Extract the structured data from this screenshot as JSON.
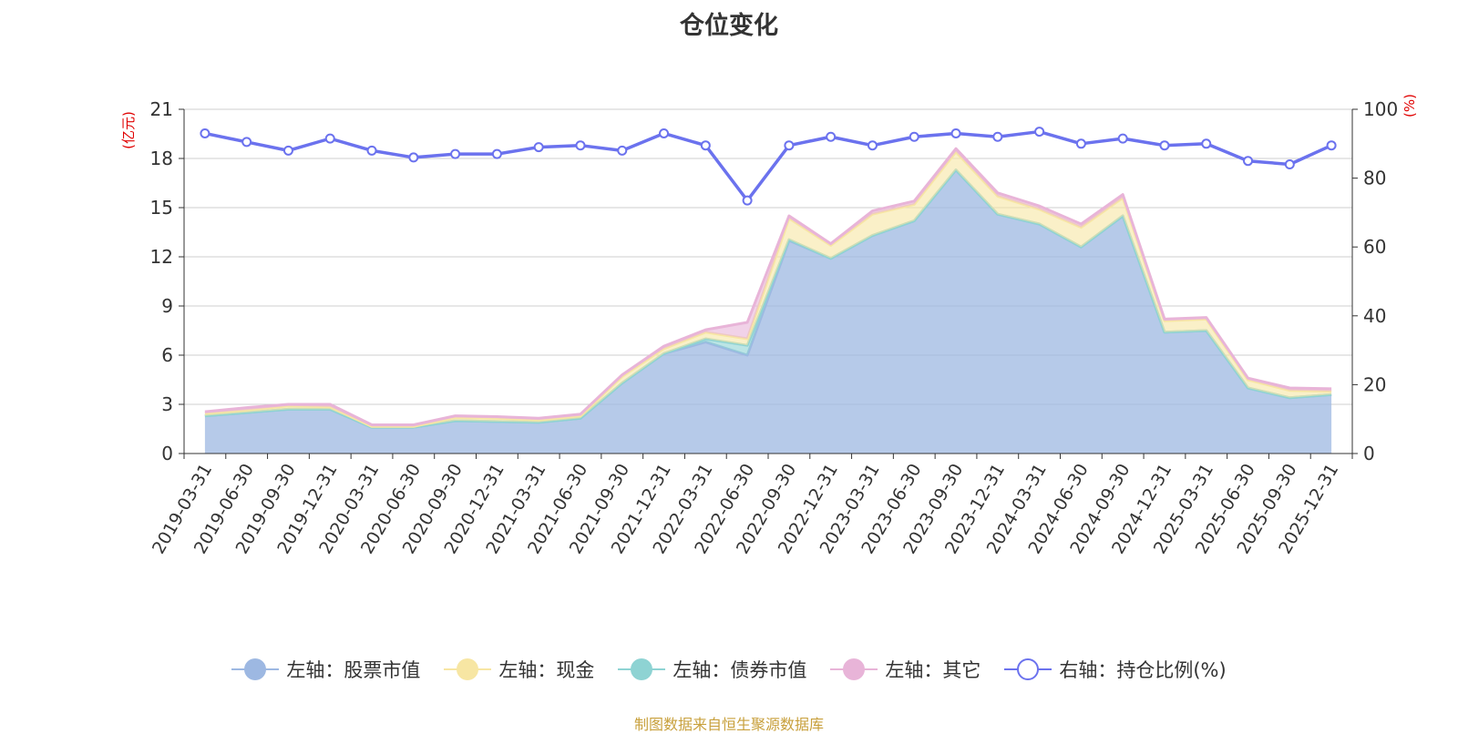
{
  "chart_data": {
    "type": "area",
    "title": "仓位变化",
    "x": [
      "2019-03-31",
      "2019-06-30",
      "2019-09-30",
      "2019-12-31",
      "2020-03-31",
      "2020-06-30",
      "2020-09-30",
      "2020-12-31",
      "2021-03-31",
      "2021-06-30",
      "2021-09-30",
      "2021-12-31",
      "2022-03-31",
      "2022-06-30",
      "2022-09-30",
      "2022-12-31",
      "2023-03-31",
      "2023-06-30",
      "2023-09-30",
      "2023-12-31",
      "2024-03-31",
      "2024-06-30",
      "2024-09-30",
      "2024-12-31",
      "2025-03-31",
      "2025-06-30",
      "2025-09-30",
      "2025-12-31"
    ],
    "left_axis": {
      "unit_label": "(亿元)",
      "ylim": [
        0,
        21
      ],
      "ticks": [
        "0",
        "3",
        "6",
        "9",
        "12",
        "15",
        "18",
        "21"
      ]
    },
    "right_axis": {
      "unit_label": "(%)",
      "ylim": [
        0,
        100
      ],
      "ticks": [
        "0",
        "20",
        "40",
        "60",
        "80",
        "100"
      ]
    },
    "grid": true,
    "legend_position": "bottom",
    "stack_order": [
      "股票市值",
      "债券市值",
      "现金",
      "其它"
    ],
    "series": [
      {
        "key": "stock",
        "name": "左轴：股票市值",
        "axis": "left",
        "kind": "area",
        "color": "#9db8e2",
        "values": [
          2.3,
          2.5,
          2.7,
          2.7,
          1.6,
          1.6,
          2.0,
          1.95,
          1.9,
          2.15,
          4.3,
          6.1,
          6.8,
          6.0,
          13.0,
          11.9,
          13.3,
          14.2,
          17.3,
          14.6,
          14.0,
          12.6,
          14.5,
          7.4,
          7.5,
          4.0,
          3.4,
          3.6
        ]
      },
      {
        "key": "cash",
        "name": "左轴：现金",
        "axis": "left",
        "kind": "area",
        "color": "#f7e6a3",
        "values": [
          0.15,
          0.15,
          0.2,
          0.15,
          0.05,
          0.05,
          0.2,
          0.2,
          0.15,
          0.15,
          0.4,
          0.3,
          0.4,
          0.4,
          1.3,
          0.8,
          1.3,
          1.0,
          1.1,
          1.1,
          0.9,
          1.2,
          1.1,
          0.7,
          0.7,
          0.5,
          0.45,
          0.2
        ]
      },
      {
        "key": "bond",
        "name": "左轴：债券市值",
        "axis": "left",
        "kind": "area",
        "color": "#8ed3d3",
        "values": [
          0,
          0,
          0,
          0,
          0,
          0,
          0,
          0,
          0,
          0,
          0,
          0,
          0.2,
          0.6,
          0.05,
          0,
          0,
          0,
          0,
          0,
          0,
          0,
          0,
          0,
          0,
          0,
          0,
          0
        ]
      },
      {
        "key": "other",
        "name": "左轴：其它",
        "axis": "left",
        "kind": "area",
        "color": "#e8b4d8",
        "values": [
          0.1,
          0.15,
          0.1,
          0.15,
          0.1,
          0.1,
          0.1,
          0.1,
          0.1,
          0.1,
          0.1,
          0.15,
          0.15,
          1.0,
          0.15,
          0.1,
          0.2,
          0.2,
          0.2,
          0.2,
          0.2,
          0.2,
          0.2,
          0.1,
          0.1,
          0.1,
          0.15,
          0.15
        ]
      },
      {
        "key": "ratio",
        "name": "右轴：持仓比例(%)",
        "axis": "right",
        "kind": "line",
        "color": "#6b72ee",
        "values": [
          93,
          90.5,
          88,
          91.5,
          88,
          86,
          87,
          87,
          89,
          89.5,
          88,
          93,
          89.5,
          73.5,
          89.5,
          92,
          89.5,
          92,
          93,
          92,
          93.5,
          90,
          91.5,
          89.5,
          90,
          85,
          84,
          89.5
        ]
      }
    ],
    "source_note": "制图数据来自恒生聚源数据库"
  }
}
